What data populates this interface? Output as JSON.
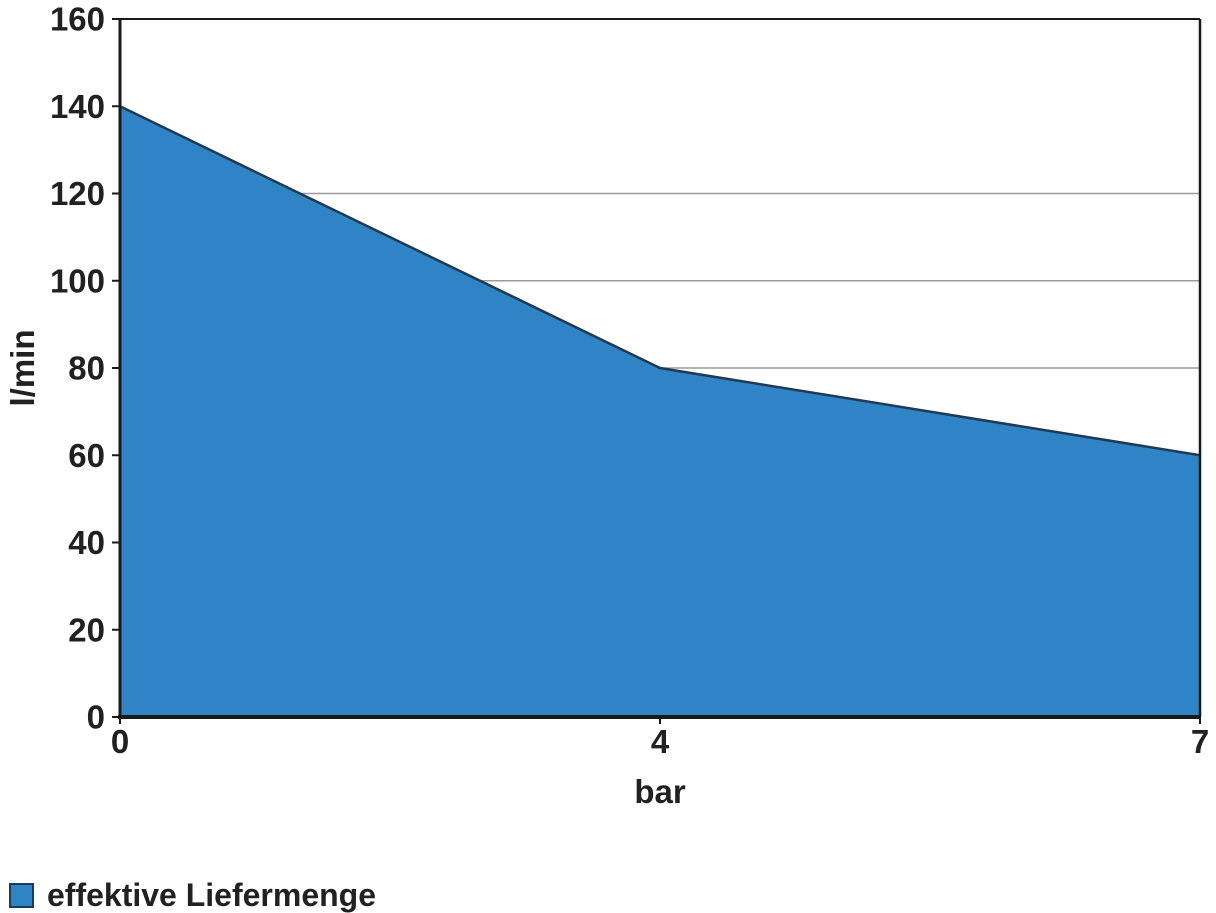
{
  "chart_data": {
    "type": "area",
    "x_axis_type": "category",
    "categories": [
      "0",
      "4",
      "7"
    ],
    "series": [
      {
        "name": "effektive Liefermenge",
        "values": [
          140,
          80,
          60
        ]
      }
    ],
    "xlabel": "bar",
    "ylabel": "l/min",
    "ylim": [
      0,
      160
    ],
    "yticks": [
      160,
      140,
      120,
      100,
      80,
      60,
      40,
      20,
      0
    ],
    "gridlines_visible": [
      120,
      100,
      80
    ],
    "legend_position": "bottom-left",
    "grid_on": true,
    "colors": {
      "fill": "#2E84C4",
      "line": "#1F3A54",
      "grid": "#9B9B9B",
      "axis": "#1A1A1A",
      "text": "#212121",
      "swatch_border": "#1F3A54"
    }
  }
}
